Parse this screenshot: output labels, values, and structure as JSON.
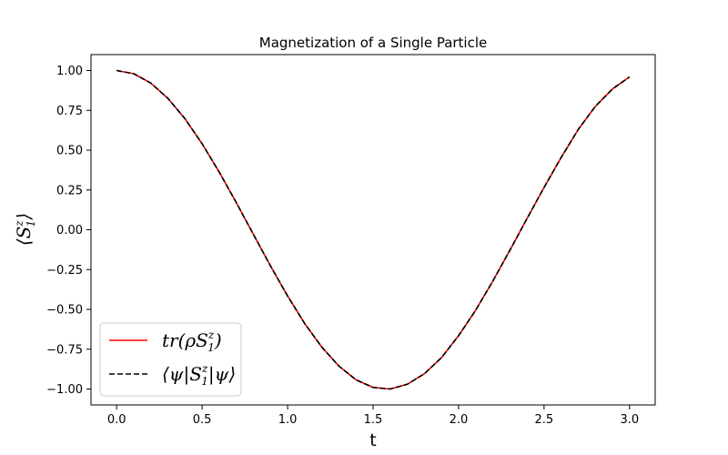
{
  "chart_data": {
    "type": "line",
    "title": "Magnetization of a Single Particle",
    "xlabel": "t",
    "ylabel": "⟨S₁ᶻ⟩",
    "xlim": [
      -0.15,
      3.15
    ],
    "ylim": [
      -1.1,
      1.1
    ],
    "xticks": [
      0.0,
      0.5,
      1.0,
      1.5,
      2.0,
      2.5,
      3.0
    ],
    "xtick_labels": [
      "0.0",
      "0.5",
      "1.0",
      "1.5",
      "2.0",
      "2.5",
      "3.0"
    ],
    "yticks": [
      1.0,
      0.75,
      0.5,
      0.25,
      0.0,
      -0.25,
      -0.5,
      -0.75,
      -1.0
    ],
    "ytick_labels": [
      "1.00",
      "0.75",
      "0.50",
      "0.25",
      "0.00",
      "−0.25",
      "−0.50",
      "−0.75",
      "−1.00"
    ],
    "grid": false,
    "legend_position": "lower-left",
    "x": [
      0.0,
      0.1,
      0.2,
      0.3,
      0.4,
      0.5,
      0.6,
      0.7,
      0.8,
      0.9,
      1.0,
      1.1,
      1.2,
      1.3,
      1.4,
      1.5,
      1.6,
      1.7,
      1.8,
      1.9,
      2.0,
      2.1,
      2.2,
      2.3,
      2.4,
      2.5,
      2.6,
      2.7,
      2.8,
      2.9,
      3.0
    ],
    "series": [
      {
        "name": "tr(ρS₁ᶻ)",
        "color": "#ff0000",
        "linestyle": "solid",
        "values": [
          1.0,
          0.98,
          0.921,
          0.825,
          0.697,
          0.54,
          0.362,
          0.17,
          -0.029,
          -0.227,
          -0.416,
          -0.589,
          -0.737,
          -0.856,
          -0.942,
          -0.99,
          -1.0,
          -0.97,
          -0.904,
          -0.803,
          -0.665,
          -0.505,
          -0.323,
          -0.129,
          0.07,
          0.266,
          0.454,
          0.63,
          0.775,
          0.884,
          0.96
        ]
      },
      {
        "name": "⟨ψ|S₁ᶻ|ψ⟩",
        "color": "#000000",
        "linestyle": "dashed",
        "values": [
          1.0,
          0.98,
          0.921,
          0.825,
          0.697,
          0.54,
          0.362,
          0.17,
          -0.029,
          -0.227,
          -0.416,
          -0.589,
          -0.737,
          -0.856,
          -0.942,
          -0.99,
          -1.0,
          -0.97,
          -0.904,
          -0.803,
          -0.665,
          -0.505,
          -0.323,
          -0.129,
          0.07,
          0.266,
          0.454,
          0.63,
          0.775,
          0.884,
          0.96
        ]
      }
    ],
    "legend": {
      "entry_1": {
        "main": "tr(ρS",
        "sub": "1",
        "sup": "z",
        "tail": ")"
      },
      "entry_2": {
        "main": "⟨ψ|S",
        "sub": "1",
        "sup": "z",
        "tail": "|ψ⟩"
      }
    },
    "ylabel_parts": {
      "open": "⟨S",
      "sub": "1",
      "sup": "z",
      "close": "⟩"
    }
  }
}
